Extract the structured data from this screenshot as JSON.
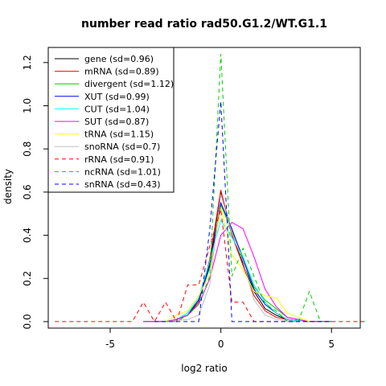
{
  "chart_data": {
    "type": "line",
    "title": "number read ratio rad50.G1.2/WT.G1.1",
    "xlabel": "log2 ratio",
    "ylabel": "density",
    "xlim": [
      -7.8,
      6.3
    ],
    "ylim": [
      -0.03,
      1.27
    ],
    "xticks": [
      -5,
      0,
      5
    ],
    "yticks": [
      0.0,
      0.2,
      0.4,
      0.6,
      0.8,
      1.0,
      1.2
    ],
    "grid": false,
    "legend_position": "top-left",
    "series": [
      {
        "name": "gene (sd=0.96)",
        "color": "#000000",
        "dash": "solid",
        "x": [
          -3.5,
          -2.5,
          -2,
          -1.5,
          -1,
          -0.5,
          0,
          0.5,
          1,
          1.5,
          2,
          2.5,
          3,
          4,
          5
        ],
        "y": [
          0,
          0,
          0.01,
          0.03,
          0.09,
          0.27,
          0.6,
          0.41,
          0.27,
          0.14,
          0.06,
          0.03,
          0.01,
          0,
          0
        ]
      },
      {
        "name": "mRNA (sd=0.89)",
        "color": "#ff0000",
        "dash": "solid",
        "x": [
          -3.5,
          -2.5,
          -2,
          -1.5,
          -1,
          -0.5,
          0,
          0.5,
          1,
          1.5,
          2,
          2.5,
          3,
          4,
          5
        ],
        "y": [
          0,
          0,
          0.01,
          0.03,
          0.09,
          0.29,
          0.61,
          0.4,
          0.26,
          0.12,
          0.05,
          0.02,
          0.01,
          0,
          0
        ]
      },
      {
        "name": "divergent (sd=1.12)",
        "color": "#00cc00",
        "dash": "solid",
        "x": [
          -3.5,
          -2.5,
          -2,
          -1.5,
          -1,
          -0.5,
          0,
          0.5,
          1,
          1.5,
          2,
          2.5,
          3,
          4,
          5
        ],
        "y": [
          0,
          0,
          0.01,
          0.04,
          0.1,
          0.25,
          0.54,
          0.42,
          0.3,
          0.16,
          0.1,
          0.06,
          0.02,
          0,
          0
        ]
      },
      {
        "name": "XUT (sd=0.99)",
        "color": "#0000ff",
        "dash": "solid",
        "x": [
          -3.5,
          -2.5,
          -2,
          -1.5,
          -1,
          -0.5,
          0,
          0.5,
          1,
          1.5,
          2,
          2.5,
          3,
          4,
          5
        ],
        "y": [
          0,
          0,
          0.01,
          0.03,
          0.1,
          0.26,
          0.55,
          0.43,
          0.29,
          0.15,
          0.08,
          0.04,
          0.01,
          0,
          0
        ]
      },
      {
        "name": "CUT (sd=1.04)",
        "color": "#00ffff",
        "dash": "solid",
        "x": [
          -3.5,
          -2.5,
          -2,
          -1.5,
          -1,
          -0.5,
          0,
          0.5,
          1,
          1.5,
          2,
          2.5,
          3,
          4,
          5
        ],
        "y": [
          0,
          0,
          0.01,
          0.04,
          0.11,
          0.28,
          0.47,
          0.39,
          0.3,
          0.17,
          0.09,
          0.04,
          0.01,
          0,
          0
        ]
      },
      {
        "name": "SUT (sd=0.87)",
        "color": "#ff00ff",
        "dash": "solid",
        "x": [
          -3.5,
          -2.5,
          -2,
          -1.5,
          -1,
          -0.5,
          0,
          0.5,
          1,
          1.5,
          2,
          2.5,
          3,
          4,
          5
        ],
        "y": [
          0,
          0,
          0.01,
          0.03,
          0.08,
          0.2,
          0.4,
          0.46,
          0.43,
          0.3,
          0.15,
          0.07,
          0.02,
          0,
          0
        ]
      },
      {
        "name": "tRNA (sd=1.15)",
        "color": "#ffff00",
        "dash": "solid",
        "x": [
          -2.5,
          -2,
          -1.5,
          -1,
          -0.5,
          0,
          0.5,
          1,
          1.5,
          2,
          2.5,
          3,
          4
        ],
        "y": [
          0,
          0.03,
          0.05,
          0.12,
          0.22,
          0.53,
          0.31,
          0.24,
          0.14,
          0.12,
          0.11,
          0.04,
          0
        ]
      },
      {
        "name": "snoRNA (sd=0.7)",
        "color": "#bebebe",
        "dash": "solid",
        "x": [
          -2.5,
          -1.5,
          -1,
          -0.5,
          0,
          0.5,
          1,
          1.5,
          2,
          2.5,
          3.5
        ],
        "y": [
          0,
          0.01,
          0.03,
          0.17,
          0.59,
          0.41,
          0.28,
          0.1,
          0.03,
          0.01,
          0
        ]
      },
      {
        "name": "rRNA (sd=0.91)",
        "color": "#ff0000",
        "dash": "dashed",
        "x": [
          -7.5,
          -4,
          -3.5,
          -3,
          -2.5,
          -2,
          -1.5,
          -1,
          -0.5,
          0,
          0.5,
          1,
          1.5,
          2,
          2.5,
          3,
          3.5,
          4,
          6.5
        ],
        "y": [
          0,
          0,
          0.09,
          0,
          0.09,
          0,
          0.17,
          0.17,
          0.35,
          0.52,
          0.09,
          0.09,
          0,
          0,
          0,
          0,
          0,
          0,
          0
        ]
      },
      {
        "name": "ncRNA (sd=1.01)",
        "color": "#00cc00",
        "dash": "dashed",
        "x": [
          -2.5,
          -2,
          -1.5,
          -1,
          -0.5,
          0,
          0.5,
          1,
          1.5,
          2,
          2.5,
          3,
          3.5,
          4,
          4.5,
          5
        ],
        "y": [
          0,
          0,
          0.03,
          0.08,
          0.21,
          1.24,
          0.21,
          0.34,
          0.21,
          0.08,
          0.05,
          0,
          0,
          0.14,
          0,
          0
        ]
      },
      {
        "name": "snRNA (sd=0.43)",
        "color": "#0000ff",
        "dash": "dashed",
        "x": [
          -3,
          -1,
          -0.5,
          0,
          0.3,
          0.5,
          1,
          2.5,
          5
        ],
        "y": [
          0,
          0,
          0.43,
          1.02,
          0.43,
          0,
          0,
          0,
          0
        ]
      }
    ]
  }
}
